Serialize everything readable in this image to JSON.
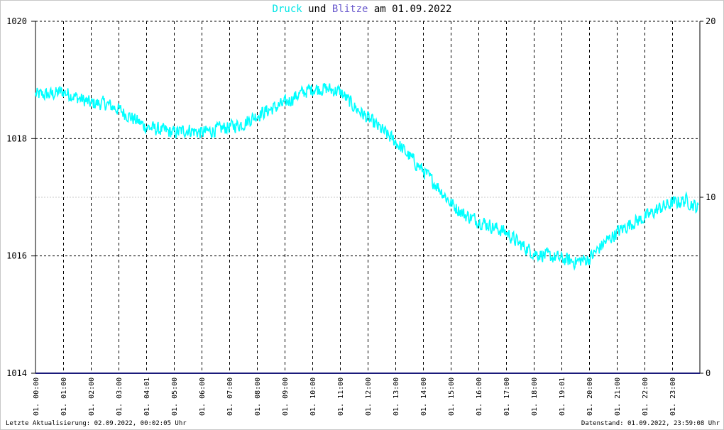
{
  "title": {
    "part_druck": "Druck",
    "part_und": "und",
    "part_blitze": "Blitze",
    "part_date": "am 01.09.2022"
  },
  "colors": {
    "druck": "#00ffff",
    "blitze": "#6a5acd",
    "blitze_line": "#1a1a7a",
    "grid": "#000000",
    "minor_grid": "#c8c8c8"
  },
  "footer": {
    "left": "Letzte Aktualisierung: 02.09.2022, 00:02:05 Uhr",
    "right": "Datenstand: 01.09.2022, 23:59:08 Uhr"
  },
  "chart_data": {
    "type": "line",
    "x_tick_labels": [
      "01. 00:00",
      "01. 01:00",
      "01. 02:00",
      "01. 03:00",
      "01. 04:01",
      "01. 05:00",
      "01. 06:00",
      "01. 07:00",
      "01. 08:00",
      "01. 09:00",
      "01. 10:00",
      "01. 11:00",
      "01. 12:00",
      "01. 13:00",
      "01. 14:00",
      "01. 15:00",
      "01. 16:00",
      "01. 17:00",
      "01. 18:00",
      "01. 19:01",
      "01. 20:00",
      "01. 21:00",
      "01. 22:00",
      "01. 23:00"
    ],
    "xlim_hours": [
      0,
      24
    ],
    "y_left": {
      "ylim": [
        1014,
        1020
      ],
      "ticks": [
        "1014",
        "1016",
        "1018",
        "1020"
      ]
    },
    "y_right": {
      "ylim": [
        0,
        20
      ],
      "ticks": [
        "0",
        "10",
        "20"
      ]
    },
    "series": [
      {
        "name": "Druck",
        "axis": "left",
        "x_hours": [
          0,
          0.5,
          1,
          1.5,
          2,
          2.5,
          3,
          3.5,
          4,
          4.5,
          5,
          5.5,
          6,
          6.5,
          7,
          7.5,
          8,
          8.5,
          9,
          9.5,
          10,
          10.5,
          11,
          11.5,
          12,
          12.5,
          13,
          13.5,
          14,
          14.5,
          15,
          15.5,
          16,
          16.5,
          17,
          17.5,
          18,
          18.5,
          19,
          19.5,
          20,
          20.5,
          21,
          21.5,
          22,
          22.5,
          23,
          23.5,
          23.98
        ],
        "values": [
          1018.75,
          1018.75,
          1018.8,
          1018.7,
          1018.6,
          1018.6,
          1018.5,
          1018.35,
          1018.2,
          1018.15,
          1018.1,
          1018.15,
          1018.1,
          1018.15,
          1018.2,
          1018.25,
          1018.4,
          1018.5,
          1018.6,
          1018.75,
          1018.85,
          1018.85,
          1018.8,
          1018.55,
          1018.35,
          1018.15,
          1017.95,
          1017.7,
          1017.45,
          1017.2,
          1016.9,
          1016.7,
          1016.6,
          1016.5,
          1016.4,
          1016.2,
          1016.05,
          1016.0,
          1015.95,
          1015.9,
          1015.95,
          1016.2,
          1016.4,
          1016.55,
          1016.65,
          1016.8,
          1016.9,
          1016.95,
          1016.8
        ]
      },
      {
        "name": "Blitze",
        "axis": "right",
        "x_hours": [
          0,
          24
        ],
        "values": [
          0,
          0
        ]
      }
    ]
  }
}
